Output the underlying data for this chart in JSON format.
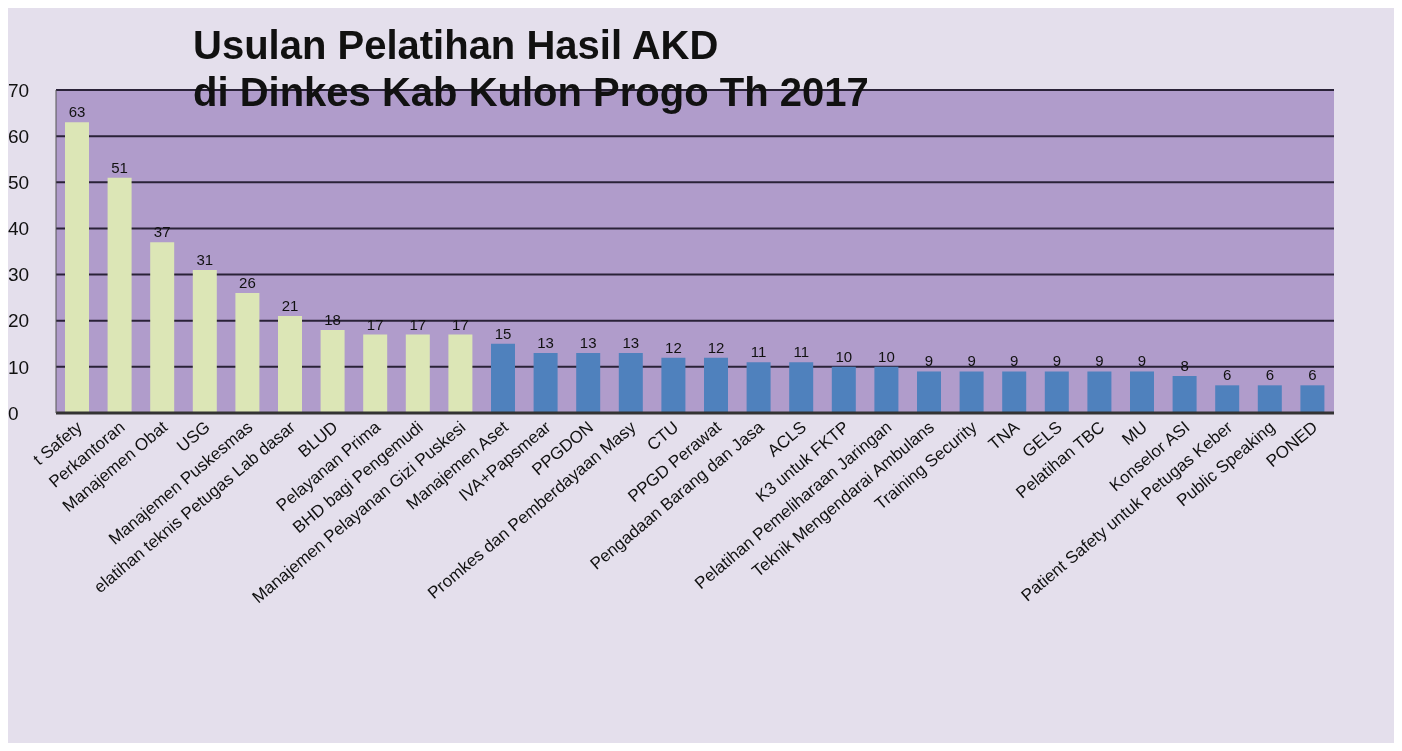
{
  "chart_data": {
    "type": "bar",
    "title": "Usulan Pelatihan Hasil AKD\ndi Dinkes Kab Kulon Progo Th 2017",
    "categories": [
      "t Safety",
      "Perkantoran",
      "Manajemen Obat",
      "USG",
      "Manajemen Puskesmas",
      "elatihan teknis Petugas Lab dasar",
      "BLUD",
      "Pelayanan Prima",
      "BHD bagi Pengemudi",
      "Manajemen Pelayanan Gizi Puskesi",
      "Manajemen Aset",
      "IVA+Papsmear",
      "PPGDON",
      "Promkes dan Pemberdayaan Masy",
      "CTU",
      "PPGD Perawat",
      "Pengadaan Barang dan Jasa",
      "ACLS",
      "K3 untuk FKTP",
      "Pelatihan Pemeliharaan Jaringan",
      "Teknik Mengendarai Ambulans",
      "Training Security",
      "TNA",
      "GELS",
      "Pelatihan TBC",
      "MU",
      "Konselor ASI",
      "Patient Safety untuk Petugas Keber",
      "Public Speaking",
      "PONED"
    ],
    "values": [
      63,
      51,
      37,
      31,
      26,
      21,
      18,
      17,
      17,
      17,
      15,
      13,
      13,
      13,
      12,
      12,
      11,
      11,
      10,
      10,
      9,
      9,
      9,
      9,
      9,
      9,
      8,
      6,
      6,
      6
    ],
    "colors": [
      "#dce6b6",
      "#dce6b6",
      "#dce6b6",
      "#dce6b6",
      "#dce6b6",
      "#dce6b6",
      "#dce6b6",
      "#dce6b6",
      "#dce6b6",
      "#dce6b6",
      "#4f81bd",
      "#4f81bd",
      "#4f81bd",
      "#4f81bd",
      "#4f81bd",
      "#4f81bd",
      "#4f81bd",
      "#4f81bd",
      "#4f81bd",
      "#4f81bd",
      "#4f81bd",
      "#4f81bd",
      "#4f81bd",
      "#4f81bd",
      "#4f81bd",
      "#4f81bd",
      "#4f81bd",
      "#4f81bd",
      "#4f81bd",
      "#4f81bd"
    ],
    "ylim": [
      0,
      70
    ],
    "yticks": [
      0,
      10,
      20,
      30,
      40,
      50,
      60,
      70
    ],
    "grid": "y",
    "data_labels": true
  }
}
